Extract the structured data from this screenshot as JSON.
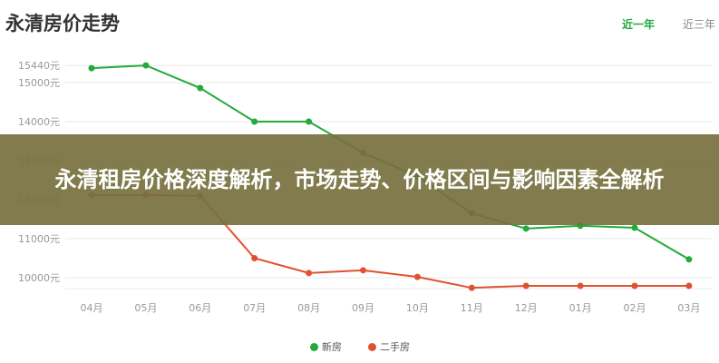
{
  "header": {
    "title": "永清房价走势",
    "tabs": [
      {
        "label": "近一年",
        "active": true
      },
      {
        "label": "近三年",
        "active": false
      }
    ]
  },
  "banner": {
    "text": "永清租房价格深度解析，市场走势、价格区间与影响因素全解析"
  },
  "chart_data": {
    "type": "line",
    "categories": [
      "04月",
      "05月",
      "06月",
      "07月",
      "08月",
      "09月",
      "10月",
      "11月",
      "12月",
      "01月",
      "02月",
      "03月"
    ],
    "yticks": [
      10000,
      11000,
      12000,
      13000,
      14000,
      15000,
      15440
    ],
    "ytick_labels": [
      "10000元",
      "11000元",
      "12000元",
      "13000元",
      "14000元",
      "15000元",
      "15440元"
    ],
    "ylim": [
      9720,
      15440
    ],
    "grid": true,
    "legend": "bottom",
    "series": [
      {
        "name": "新房",
        "color": "#22aa3a",
        "values": [
          15370,
          15440,
          14860,
          14000,
          14000,
          13200,
          12600,
          11650,
          11260,
          11330,
          11280,
          10470
        ]
      },
      {
        "name": "二手房",
        "color": "#e0522f",
        "values": [
          12120,
          12120,
          12100,
          10500,
          10120,
          10190,
          10020,
          9740,
          9790,
          9790,
          9790,
          9790
        ]
      }
    ]
  }
}
